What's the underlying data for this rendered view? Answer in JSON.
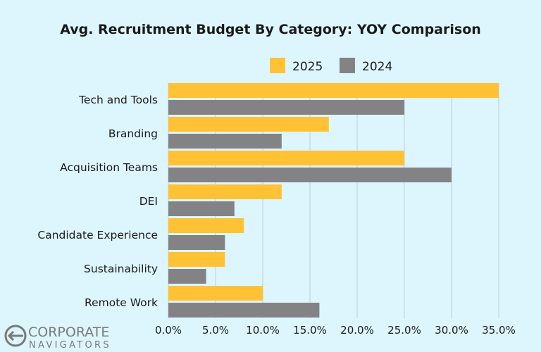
{
  "chart_data": {
    "type": "bar",
    "orientation": "horizontal",
    "title": "Avg. Recruitment Budget By Category: YOY Comparison",
    "categories": [
      "Tech and Tools",
      "Branding",
      "Acquisition Teams",
      "DEI",
      "Candidate Experience",
      "Sustainability",
      "Remote Work"
    ],
    "series": [
      {
        "name": "2025",
        "color": "#ffc235",
        "values": [
          35,
          17,
          25,
          12,
          8,
          6,
          10
        ]
      },
      {
        "name": "2024",
        "color": "#838386",
        "values": [
          25,
          12,
          30,
          7,
          6,
          4,
          16
        ]
      }
    ],
    "xlim": [
      0,
      35
    ],
    "xticks": [
      0,
      5,
      10,
      15,
      20,
      25,
      30,
      35
    ],
    "xtick_labels": [
      "0.0%",
      "5.0%",
      "10.0%",
      "15.0%",
      "20.0%",
      "25.0%",
      "30.0%",
      "35.0%"
    ],
    "unit": "%",
    "grid": "vertical",
    "legend": "top",
    "background": "#ddf6fd"
  },
  "logo": {
    "line1": "CORPORATE",
    "line2": "NAVIGATORS"
  }
}
